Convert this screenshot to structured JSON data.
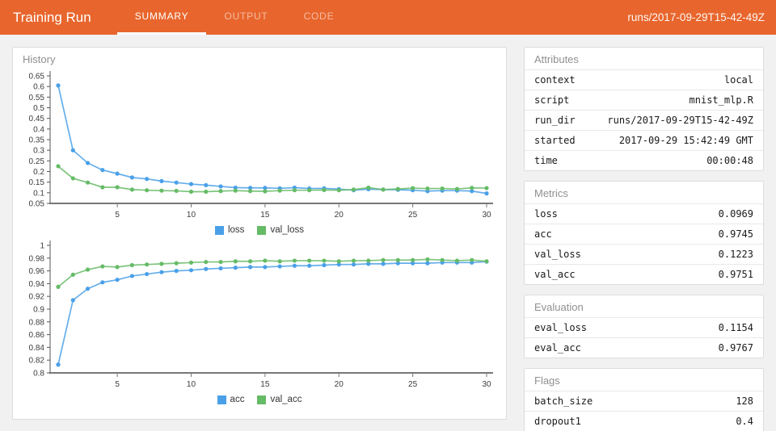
{
  "header": {
    "title": "Training Run",
    "tabs": [
      {
        "label": "SUMMARY",
        "active": true
      },
      {
        "label": "OUTPUT",
        "active": false
      },
      {
        "label": "CODE",
        "active": false
      }
    ],
    "run_id": "runs/2017-09-29T15-42-49Z",
    "accent_color": "#e8662d"
  },
  "history_panel": {
    "title": "History"
  },
  "chart_data": [
    {
      "type": "line",
      "x": [
        1,
        2,
        3,
        4,
        5,
        6,
        7,
        8,
        9,
        10,
        11,
        12,
        13,
        14,
        15,
        16,
        17,
        18,
        19,
        20,
        21,
        22,
        23,
        24,
        25,
        26,
        27,
        28,
        29,
        30
      ],
      "series": [
        {
          "name": "loss",
          "color": "#4aa0e8",
          "values": [
            0.605,
            0.3,
            0.24,
            0.207,
            0.19,
            0.172,
            0.165,
            0.155,
            0.148,
            0.141,
            0.136,
            0.13,
            0.124,
            0.123,
            0.123,
            0.121,
            0.124,
            0.12,
            0.121,
            0.117,
            0.112,
            0.117,
            0.115,
            0.114,
            0.112,
            0.108,
            0.11,
            0.11,
            0.108,
            0.097
          ]
        },
        {
          "name": "val_loss",
          "color": "#66bb66",
          "values": [
            0.225,
            0.168,
            0.148,
            0.126,
            0.126,
            0.115,
            0.112,
            0.11,
            0.109,
            0.105,
            0.105,
            0.108,
            0.11,
            0.108,
            0.107,
            0.11,
            0.112,
            0.112,
            0.113,
            0.112,
            0.115,
            0.124,
            0.115,
            0.118,
            0.122,
            0.12,
            0.12,
            0.118,
            0.123,
            0.122
          ]
        }
      ],
      "ylim": [
        0.05,
        0.65
      ],
      "yticks": [
        0.65,
        0.6,
        0.55,
        0.5,
        0.45,
        0.4,
        0.35,
        0.3,
        0.25,
        0.2,
        0.15,
        0.1,
        0.05
      ],
      "xticks": [
        5,
        10,
        15,
        20,
        25,
        30
      ],
      "xlabel": "",
      "ylabel": "",
      "grid": false,
      "legend_position": "bottom"
    },
    {
      "type": "line",
      "x": [
        1,
        2,
        3,
        4,
        5,
        6,
        7,
        8,
        9,
        10,
        11,
        12,
        13,
        14,
        15,
        16,
        17,
        18,
        19,
        20,
        21,
        22,
        23,
        24,
        25,
        26,
        27,
        28,
        29,
        30
      ],
      "series": [
        {
          "name": "acc",
          "color": "#4aa0e8",
          "values": [
            0.813,
            0.914,
            0.932,
            0.942,
            0.946,
            0.952,
            0.955,
            0.958,
            0.96,
            0.961,
            0.963,
            0.964,
            0.965,
            0.966,
            0.966,
            0.967,
            0.968,
            0.968,
            0.969,
            0.97,
            0.97,
            0.971,
            0.971,
            0.972,
            0.972,
            0.972,
            0.973,
            0.973,
            0.973,
            0.9745
          ]
        },
        {
          "name": "val_acc",
          "color": "#66bb66",
          "values": [
            0.935,
            0.954,
            0.962,
            0.967,
            0.966,
            0.969,
            0.97,
            0.971,
            0.972,
            0.973,
            0.974,
            0.974,
            0.975,
            0.975,
            0.976,
            0.975,
            0.976,
            0.976,
            0.976,
            0.975,
            0.976,
            0.976,
            0.977,
            0.977,
            0.977,
            0.978,
            0.977,
            0.976,
            0.977,
            0.9751
          ]
        }
      ],
      "ylim": [
        0.8,
        1.0
      ],
      "yticks": [
        1,
        0.98,
        0.96,
        0.94,
        0.92,
        0.9,
        0.88,
        0.86,
        0.84,
        0.82,
        0.8
      ],
      "xticks": [
        5,
        10,
        15,
        20,
        25,
        30
      ],
      "xlabel": "",
      "ylabel": "",
      "grid": false,
      "legend_position": "bottom"
    }
  ],
  "cards": [
    {
      "title": "Attributes",
      "rows": [
        [
          "context",
          "local"
        ],
        [
          "script",
          "mnist_mlp.R"
        ],
        [
          "run_dir",
          "runs/2017-09-29T15-42-49Z"
        ],
        [
          "started",
          "2017-09-29 15:42:49 GMT"
        ],
        [
          "time",
          "00:00:48"
        ]
      ]
    },
    {
      "title": "Metrics",
      "rows": [
        [
          "loss",
          "0.0969"
        ],
        [
          "acc",
          "0.9745"
        ],
        [
          "val_loss",
          "0.1223"
        ],
        [
          "val_acc",
          "0.9751"
        ]
      ]
    },
    {
      "title": "Evaluation",
      "rows": [
        [
          "eval_loss",
          "0.1154"
        ],
        [
          "eval_acc",
          "0.9767"
        ]
      ]
    },
    {
      "title": "Flags",
      "rows": [
        [
          "batch_size",
          "128"
        ],
        [
          "dropout1",
          "0.4"
        ]
      ]
    }
  ]
}
